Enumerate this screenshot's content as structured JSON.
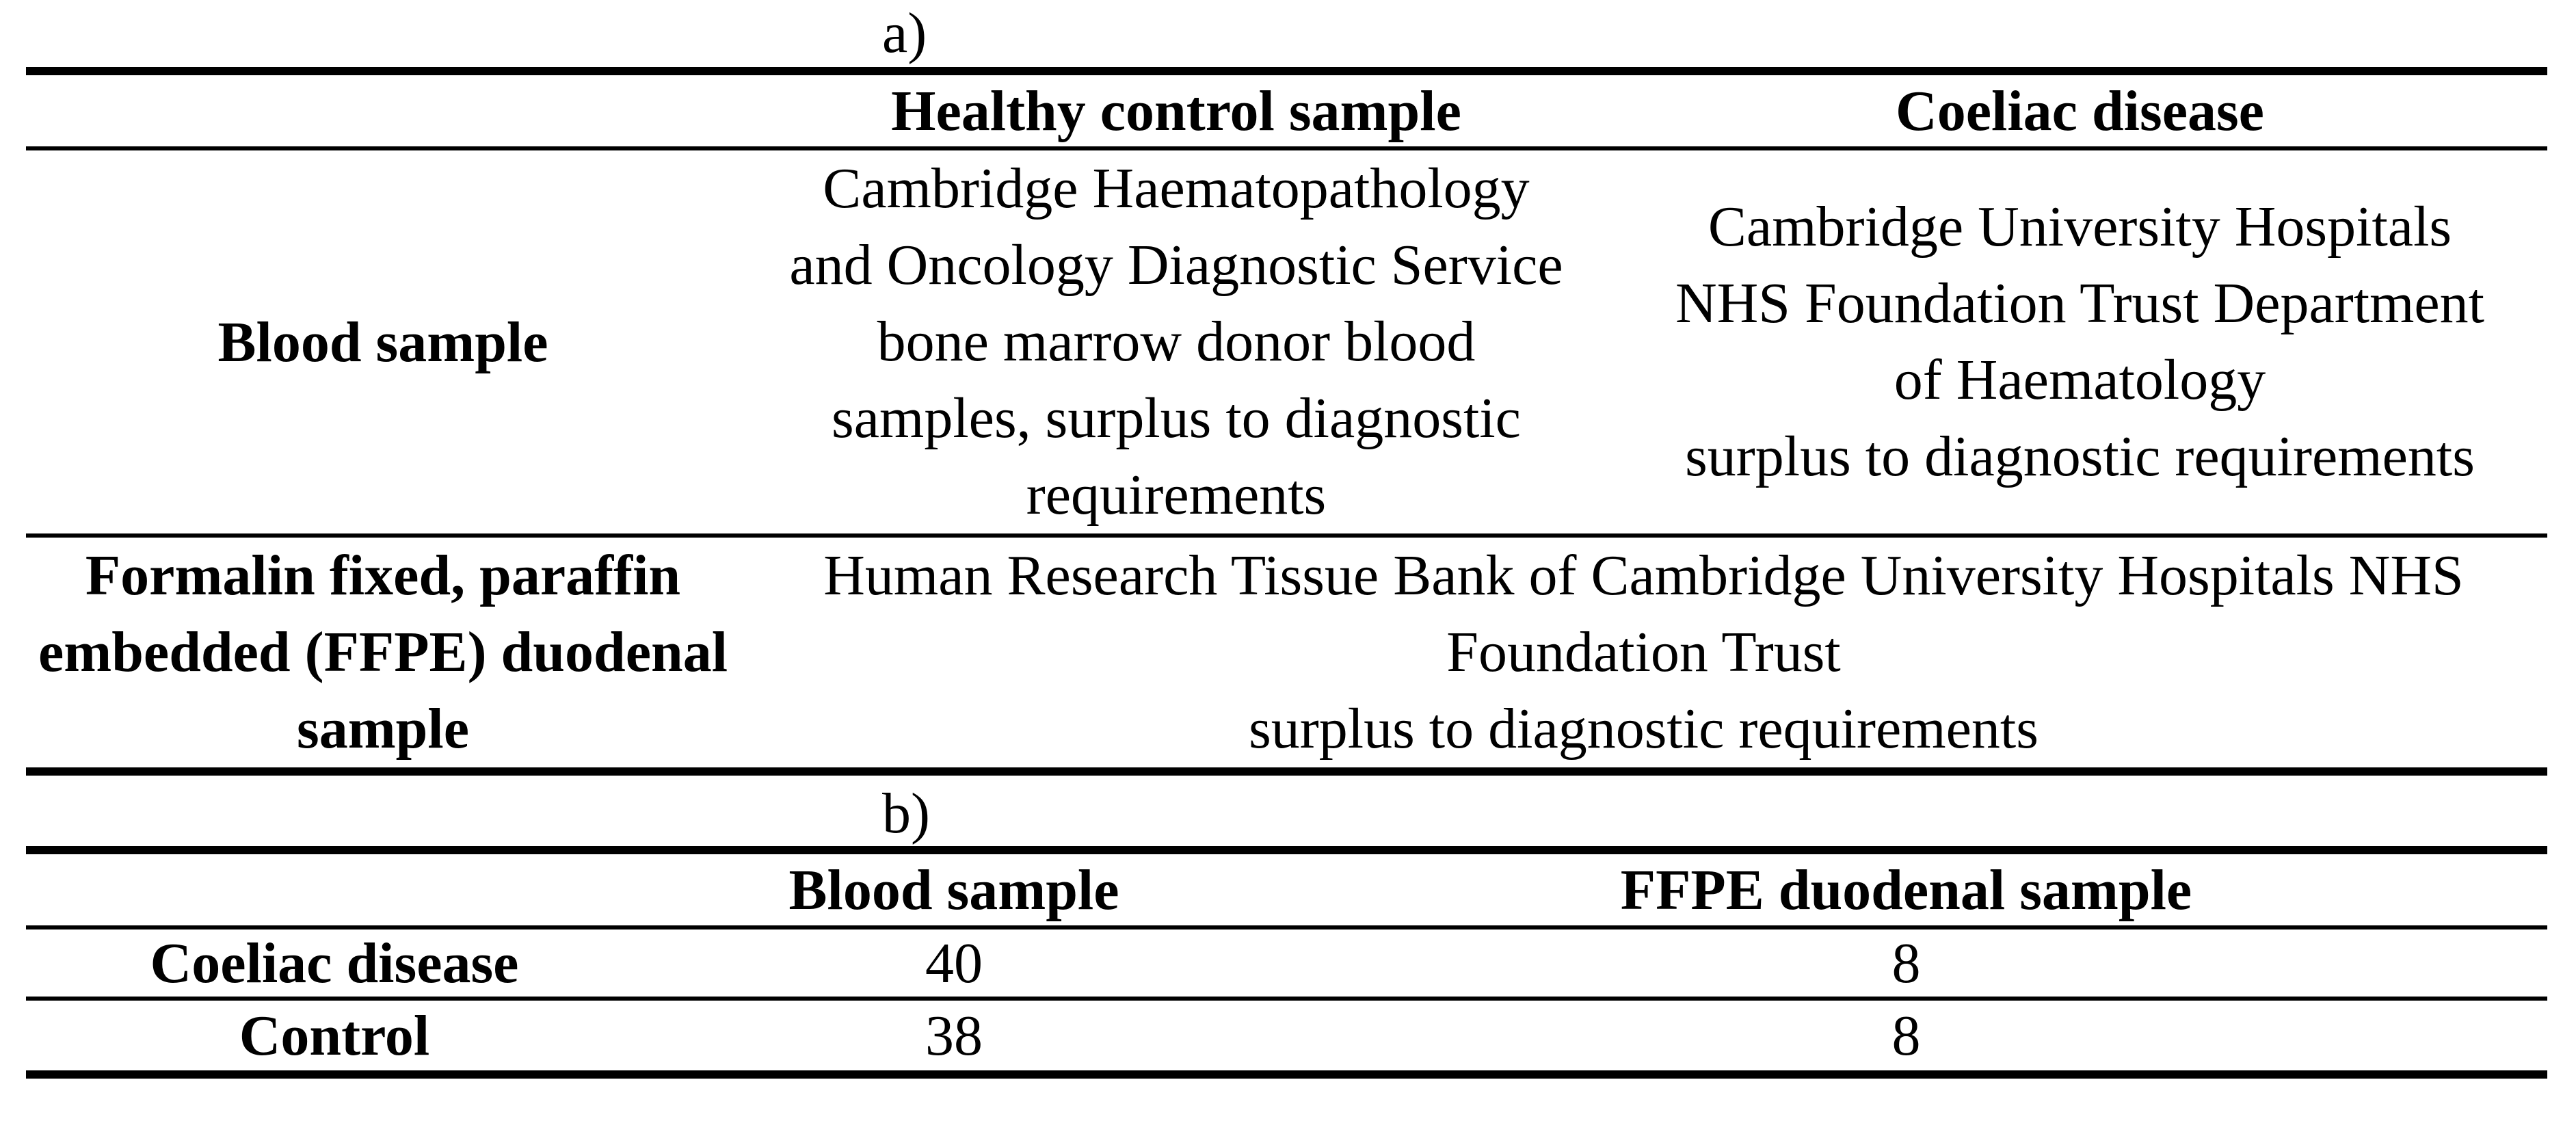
{
  "page": {
    "background_color": "#ffffff",
    "text_color": "#000000",
    "rule_color": "#000000"
  },
  "table_a": {
    "label": "a)",
    "header": {
      "col1": "",
      "col2": "Healthy control sample",
      "col3": "Coeliac disease"
    },
    "row_blood": {
      "label": "Blood sample",
      "healthy_control": "Cambridge Haematopathology\nand Oncology Diagnostic Service\nbone marrow donor blood\nsamples, surplus to diagnostic\nrequirements",
      "coeliac_disease": "Cambridge University Hospitals\nNHS Foundation Trust Department\nof Haematology\nsurplus to diagnostic requirements"
    },
    "row_ffpe": {
      "label": "Formalin fixed, paraffin\nembedded (FFPE) duodenal\nsample",
      "merged": "Human Research Tissue Bank of Cambridge University Hospitals NHS\nFoundation Trust\nsurplus to diagnostic requirements"
    }
  },
  "table_b": {
    "label": "b)",
    "header": {
      "col1": "",
      "col2": "Blood sample",
      "col3": "FFPE duodenal sample"
    },
    "rows": [
      {
        "label": "Coeliac disease",
        "blood_sample": "40",
        "ffpe_duodenal_sample": "8"
      },
      {
        "label": "Control",
        "blood_sample": "38",
        "ffpe_duodenal_sample": "8"
      }
    ]
  }
}
